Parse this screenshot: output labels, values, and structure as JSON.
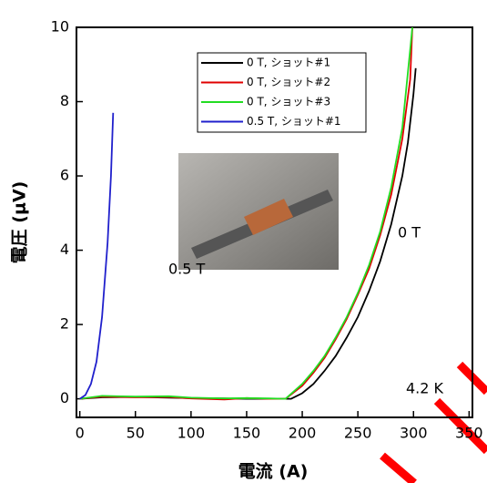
{
  "chart_data": {
    "type": "line",
    "xlabel": "電流 (A)",
    "ylabel": "電圧 (μV)",
    "xlim": [
      -3,
      353
    ],
    "ylim": [
      -0.5,
      10
    ],
    "xticks": [
      0,
      50,
      100,
      150,
      200,
      250,
      300,
      350
    ],
    "yticks": [
      0,
      2,
      4,
      6,
      8,
      10
    ],
    "legend": "upper center",
    "annotations": [
      "0.5 T",
      "0 T",
      "4.2 K"
    ],
    "series": [
      {
        "name": "0 T, ショット#1",
        "color": "#000000",
        "x": [
          0,
          20,
          50,
          80,
          100,
          130,
          150,
          170,
          190,
          200,
          210,
          220,
          230,
          240,
          250,
          260,
          270,
          280,
          290,
          295,
          300,
          302
        ],
        "values": [
          0,
          0.04,
          0.05,
          0.03,
          0.02,
          0.01,
          0.0,
          0.0,
          0.0,
          0.15,
          0.4,
          0.75,
          1.15,
          1.65,
          2.2,
          2.9,
          3.7,
          4.7,
          6.0,
          6.9,
          8.2,
          8.9
        ]
      },
      {
        "name": "0 T, ショット#2",
        "color": "#e00000",
        "x": [
          0,
          20,
          50,
          80,
          100,
          130,
          150,
          170,
          185,
          200,
          210,
          220,
          230,
          240,
          250,
          260,
          270,
          280,
          290,
          297,
          299
        ],
        "values": [
          0,
          0.06,
          0.04,
          0.05,
          0.01,
          -0.02,
          0.02,
          0.0,
          0.0,
          0.35,
          0.7,
          1.1,
          1.6,
          2.15,
          2.8,
          3.5,
          4.4,
          5.5,
          7.0,
          8.6,
          10
        ]
      },
      {
        "name": "0 T, ショット#3",
        "color": "#22dd22",
        "x": [
          0,
          20,
          50,
          80,
          100,
          130,
          150,
          170,
          185,
          200,
          210,
          220,
          230,
          240,
          250,
          260,
          270,
          280,
          290,
          297,
          299
        ],
        "values": [
          0,
          0.08,
          0.06,
          0.07,
          0.03,
          0.01,
          0.02,
          0.01,
          0.0,
          0.4,
          0.75,
          1.15,
          1.65,
          2.2,
          2.85,
          3.6,
          4.5,
          5.7,
          7.3,
          9.4,
          10
        ]
      },
      {
        "name": "0.5 T, ショット#1",
        "color": "#2020cc",
        "x": [
          0,
          5,
          10,
          15,
          20,
          25,
          28,
          30
        ],
        "values": [
          0,
          0.1,
          0.4,
          1.0,
          2.2,
          4.2,
          6.0,
          7.7
        ]
      }
    ]
  }
}
